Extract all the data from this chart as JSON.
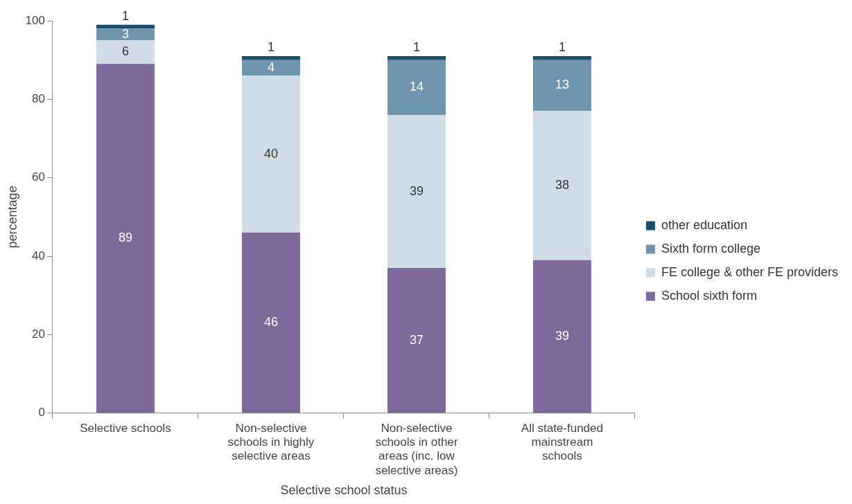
{
  "chart_data": {
    "type": "bar",
    "stacked": true,
    "xlabel": "Selective school status",
    "ylabel": "percentage",
    "categories": [
      "Selective schools",
      "Non-selective schools in highly selective areas",
      "Non-selective schools in other areas (inc. low selective areas)",
      "All state-funded mainstream schools"
    ],
    "series": [
      {
        "name": "School sixth form",
        "color": "#7d6a9a",
        "values": [
          89,
          46,
          37,
          39
        ]
      },
      {
        "name": "FE college & other FE providers",
        "color": "#d0dde6",
        "values": [
          6,
          40,
          39,
          38
        ]
      },
      {
        "name": "Sixth form college",
        "color": "#6f94ad",
        "values": [
          3,
          4,
          14,
          13
        ]
      },
      {
        "name": "other education",
        "color": "#1c4e6e",
        "values": [
          1,
          1,
          1,
          1
        ]
      }
    ],
    "ylim": [
      0,
      100
    ],
    "yticks": [
      0,
      20,
      40,
      60,
      80,
      100
    ],
    "grid": false,
    "legend": "right",
    "data_labels": true
  }
}
